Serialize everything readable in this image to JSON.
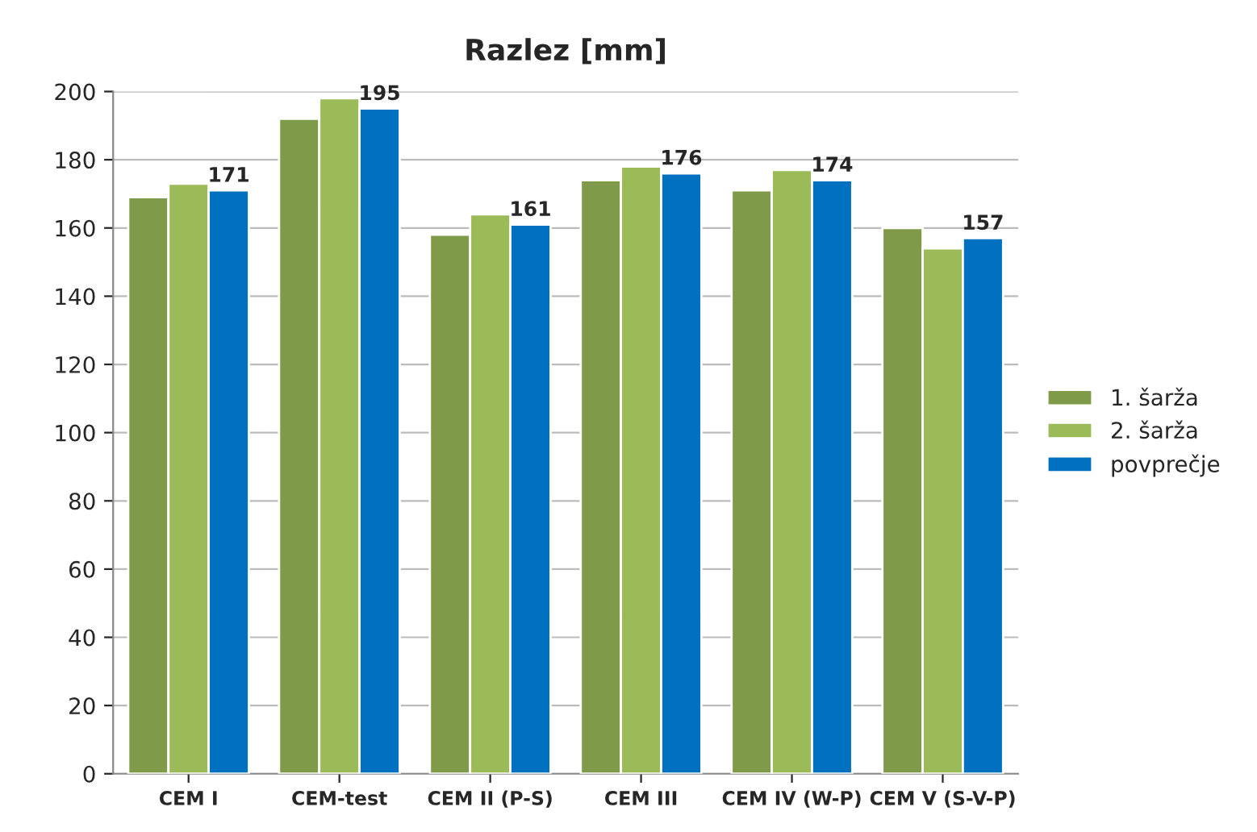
{
  "chart_data": {
    "type": "bar",
    "title": "Razlez [mm]",
    "categories": [
      "CEM I",
      "CEM-test",
      "CEM II (P-S)",
      "CEM III",
      "CEM IV (W-P)",
      "CEM V (S-V-P)"
    ],
    "series": [
      {
        "name": "1. šarža",
        "color": "#7f9a48",
        "values": [
          169,
          192,
          158,
          174,
          171,
          160
        ]
      },
      {
        "name": "2. šarža",
        "color": "#9bbb59",
        "values": [
          173,
          198,
          164,
          178,
          177,
          154
        ]
      },
      {
        "name": "povprečje",
        "color": "#0070c0",
        "values": [
          171,
          195,
          161,
          176,
          174,
          157
        ],
        "value_labels": [
          "171",
          "195",
          "161",
          "176",
          "174",
          "157"
        ]
      }
    ],
    "ylim": [
      0,
      200
    ],
    "yticks": [
      0,
      20,
      40,
      60,
      80,
      100,
      120,
      140,
      160,
      180,
      200
    ],
    "grid": "y",
    "legend": "right"
  }
}
